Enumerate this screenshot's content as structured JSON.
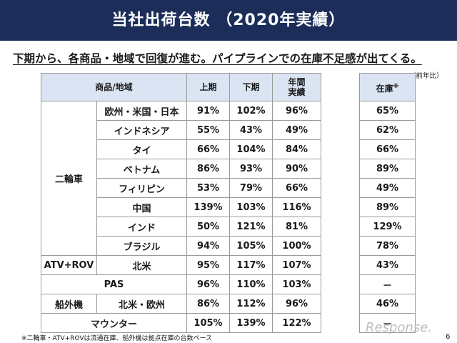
{
  "header": {
    "title": "当社出荷台数 （2020年実績）"
  },
  "subtitle": "下期から、各商品・地域で回復が進む。パイプラインでの在庫不足感が出てくる。",
  "note": "（前年比）",
  "table": {
    "columns": {
      "product_region": "商品/地域",
      "first_half": "上期",
      "second_half": "下期",
      "annual_line1": "年間",
      "annual_line2": "実績",
      "stock": "在庫",
      "stock_mark": "※"
    },
    "groups": {
      "two_wheel": "二輪車",
      "atv": "ATV+ROV",
      "pas": "PAS",
      "outboard": "船外機",
      "mounter": "マウンター"
    },
    "rows": [
      {
        "region": "欧州・米国・日本",
        "h1": "91%",
        "h2": "102%",
        "year": "96%",
        "stock": "65%"
      },
      {
        "region": "インドネシア",
        "h1": "55%",
        "h2": "43%",
        "year": "49%",
        "stock": "62%"
      },
      {
        "region": "タイ",
        "h1": "66%",
        "h2": "104%",
        "year": "84%",
        "stock": "66%"
      },
      {
        "region": "ベトナム",
        "h1": "86%",
        "h2": "93%",
        "year": "90%",
        "stock": "89%"
      },
      {
        "region": "フィリピン",
        "h1": "53%",
        "h2": "79%",
        "year": "66%",
        "stock": "49%"
      },
      {
        "region": "中国",
        "h1": "139%",
        "h2": "103%",
        "year": "116%",
        "stock": "89%"
      },
      {
        "region": "インド",
        "h1": "50%",
        "h2": "121%",
        "year": "81%",
        "stock": "129%"
      },
      {
        "region": "ブラジル",
        "h1": "94%",
        "h2": "105%",
        "year": "100%",
        "stock": "78%"
      },
      {
        "region": "北米",
        "h1": "95%",
        "h2": "117%",
        "year": "107%",
        "stock": "43%"
      },
      {
        "region": "",
        "h1": "96%",
        "h2": "110%",
        "year": "103%",
        "stock": "－"
      },
      {
        "region": "北米・欧州",
        "h1": "86%",
        "h2": "112%",
        "year": "96%",
        "stock": "46%"
      },
      {
        "region": "",
        "h1": "105%",
        "h2": "139%",
        "year": "122%",
        "stock": "－"
      }
    ]
  },
  "footnote": "※二輪車・ATV+ROVは流通在庫、船外機は拠点在庫の台数ベース",
  "logo": "Response.",
  "page_number": "6"
}
